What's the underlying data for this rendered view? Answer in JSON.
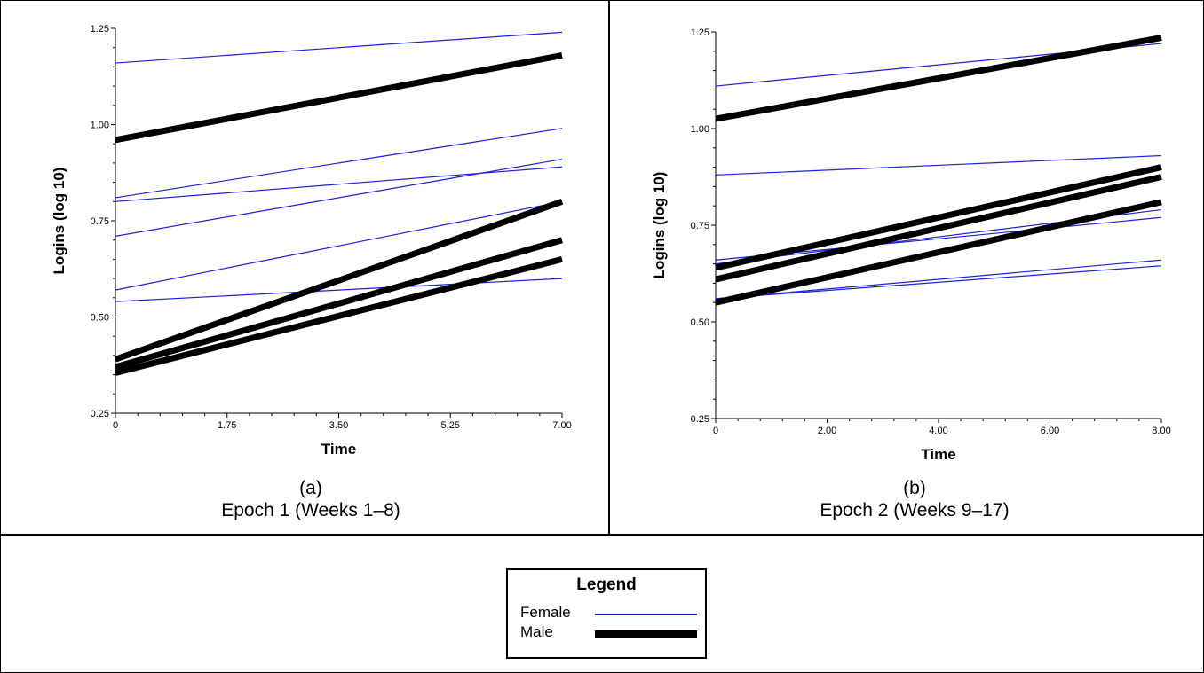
{
  "charts": [
    {
      "id": "a",
      "caption_letter": "(a)",
      "caption_title": "Epoch 1 (Weeks 1–8)"
    },
    {
      "id": "b",
      "caption_letter": "(b)",
      "caption_title": "Epoch 2 (Weeks 9–17)"
    }
  ],
  "legend": {
    "title": "Legend",
    "items": [
      {
        "label": "Female",
        "color": "#1f1fdc",
        "style": "thin"
      },
      {
        "label": "Male",
        "color": "#000000",
        "style": "thick"
      }
    ]
  },
  "colors": {
    "female": "#1f1fdc",
    "male": "#000000"
  },
  "chart_data": [
    {
      "type": "line",
      "xlabel": "Time",
      "ylabel": "Logins (log 10)",
      "xlim": [
        0,
        7
      ],
      "ylim": [
        0.25,
        1.25
      ],
      "xticks": [
        "0",
        "1.75",
        "3.50",
        "5.25",
        "7.00"
      ],
      "xtick_values": [
        0,
        1.75,
        3.5,
        5.25,
        7
      ],
      "yticks": [
        "0.25",
        "0.50",
        "0.75",
        "1.00",
        "1.25"
      ],
      "ytick_values": [
        0.25,
        0.5,
        0.75,
        1.0,
        1.25
      ],
      "grid": false,
      "series": [
        {
          "group": "Female",
          "x": [
            0,
            7
          ],
          "y": [
            1.16,
            1.24
          ]
        },
        {
          "group": "Female",
          "x": [
            0,
            7
          ],
          "y": [
            0.81,
            0.99
          ]
        },
        {
          "group": "Female",
          "x": [
            0,
            7
          ],
          "y": [
            0.8,
            0.89
          ]
        },
        {
          "group": "Female",
          "x": [
            0,
            7
          ],
          "y": [
            0.71,
            0.91
          ]
        },
        {
          "group": "Female",
          "x": [
            0,
            7
          ],
          "y": [
            0.57,
            0.8
          ]
        },
        {
          "group": "Female",
          "x": [
            0,
            7
          ],
          "y": [
            0.54,
            0.6
          ]
        },
        {
          "group": "Male",
          "x": [
            0,
            7
          ],
          "y": [
            0.96,
            1.18
          ]
        },
        {
          "group": "Male",
          "x": [
            0,
            7
          ],
          "y": [
            0.39,
            0.8
          ]
        },
        {
          "group": "Male",
          "x": [
            0,
            7
          ],
          "y": [
            0.37,
            0.7
          ]
        },
        {
          "group": "Male",
          "x": [
            0,
            7
          ],
          "y": [
            0.355,
            0.65
          ]
        }
      ]
    },
    {
      "type": "line",
      "xlabel": "Time",
      "ylabel": "Logins (log 10)",
      "xlim": [
        0,
        8
      ],
      "ylim": [
        0.25,
        1.25
      ],
      "xticks": [
        "0",
        "2.00",
        "4.00",
        "6.00",
        "8.00"
      ],
      "xtick_values": [
        0,
        2,
        4,
        6,
        8
      ],
      "yticks": [
        "0.25",
        "0.50",
        "0.75",
        "1.00",
        "1.25"
      ],
      "ytick_values": [
        0.25,
        0.5,
        0.75,
        1.0,
        1.25
      ],
      "grid": false,
      "series": [
        {
          "group": "Female",
          "x": [
            0,
            8
          ],
          "y": [
            1.11,
            1.22
          ]
        },
        {
          "group": "Female",
          "x": [
            0,
            8
          ],
          "y": [
            0.88,
            0.93
          ]
        },
        {
          "group": "Female",
          "x": [
            0,
            8
          ],
          "y": [
            0.65,
            0.79
          ]
        },
        {
          "group": "Female",
          "x": [
            0,
            8
          ],
          "y": [
            0.66,
            0.77
          ]
        },
        {
          "group": "Female",
          "x": [
            0,
            8
          ],
          "y": [
            0.56,
            0.66
          ]
        },
        {
          "group": "Female",
          "x": [
            0,
            8
          ],
          "y": [
            0.56,
            0.645
          ]
        },
        {
          "group": "Male",
          "x": [
            0,
            8
          ],
          "y": [
            1.025,
            1.235
          ]
        },
        {
          "group": "Male",
          "x": [
            0,
            8
          ],
          "y": [
            0.64,
            0.9
          ]
        },
        {
          "group": "Male",
          "x": [
            0,
            8
          ],
          "y": [
            0.61,
            0.875
          ]
        },
        {
          "group": "Male",
          "x": [
            0,
            8
          ],
          "y": [
            0.55,
            0.81
          ]
        }
      ]
    }
  ]
}
